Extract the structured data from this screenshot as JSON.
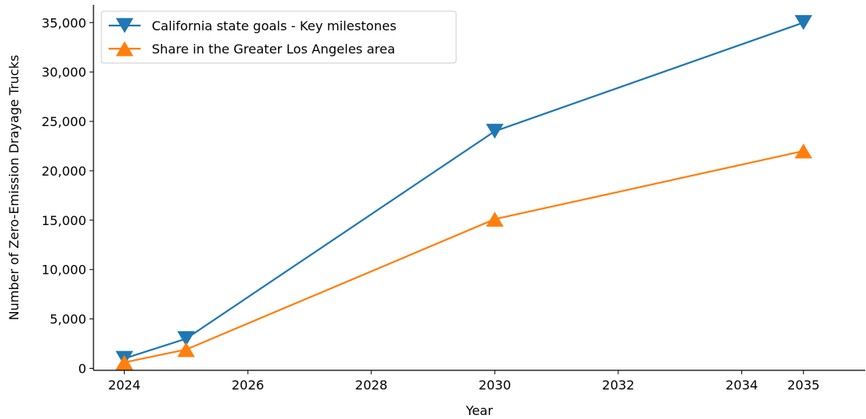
{
  "chart_data": {
    "type": "line",
    "xlabel": "Year",
    "ylabel": "Number of Zero-Emission Drayage Trucks",
    "xlim": [
      2023.5,
      2036.0
    ],
    "ylim": [
      -200,
      36800
    ],
    "x_ticks": [
      2024,
      2026,
      2028,
      2030,
      2032,
      2034,
      2035
    ],
    "y_ticks": [
      0,
      5000,
      10000,
      15000,
      20000,
      25000,
      30000,
      35000
    ],
    "grid": false,
    "legend_position": "top-left",
    "series": [
      {
        "name": "California state goals - Key milestones",
        "color": "#1f77b4",
        "marker": "triangle-down",
        "x": [
          2024,
          2025,
          2030,
          2035
        ],
        "y": [
          1000,
          3000,
          24000,
          35000
        ]
      },
      {
        "name": "Share in the Greater Los Angeles area",
        "color": "#ff7f0e",
        "marker": "triangle-up",
        "x": [
          2024,
          2025,
          2030,
          2035
        ],
        "y": [
          600,
          1900,
          15100,
          22000
        ]
      }
    ]
  }
}
